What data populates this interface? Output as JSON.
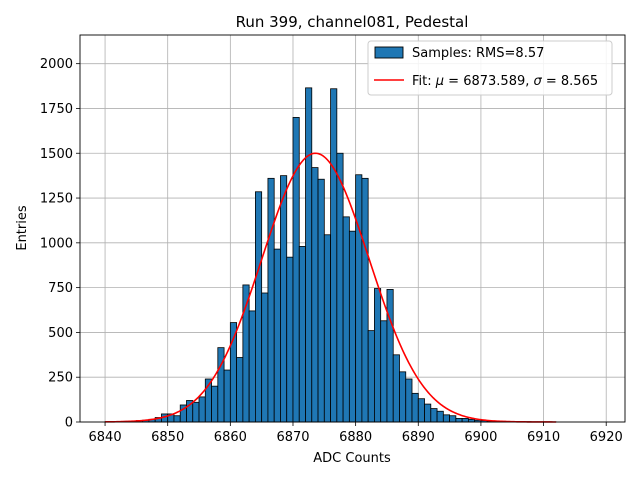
{
  "chart_data": {
    "type": "bar",
    "title": "Run 399, channel081, Pedestal",
    "xlabel": "ADC Counts",
    "ylabel": "Entries",
    "xlim": [
      6836,
      6923
    ],
    "ylim": [
      0,
      2160
    ],
    "xticks": [
      6840,
      6850,
      6860,
      6870,
      6880,
      6890,
      6900,
      6910,
      6920
    ],
    "yticks": [
      0,
      250,
      500,
      750,
      1000,
      1250,
      1500,
      1750,
      2000
    ],
    "grid": true,
    "legend_position": "top-right",
    "colors": {
      "bars": "#1f77b4",
      "bar_edge": "#000000",
      "fit": "#ff0000",
      "grid": "#b0b0b0"
    },
    "histogram": {
      "name": "Samples: RMS=8.57",
      "bin_width": 1,
      "bin_left_edges": [
        6840,
        6841,
        6842,
        6843,
        6844,
        6845,
        6846,
        6847,
        6848,
        6849,
        6850,
        6851,
        6852,
        6853,
        6854,
        6855,
        6856,
        6857,
        6858,
        6859,
        6860,
        6861,
        6862,
        6863,
        6864,
        6865,
        6866,
        6867,
        6868,
        6869,
        6870,
        6871,
        6872,
        6873,
        6874,
        6875,
        6876,
        6877,
        6878,
        6879,
        6880,
        6881,
        6882,
        6883,
        6884,
        6885,
        6886,
        6887,
        6888,
        6889,
        6890,
        6891,
        6892,
        6893,
        6894,
        6895,
        6896,
        6897,
        6898,
        6899,
        6900,
        6901,
        6902,
        6903,
        6904,
        6905,
        6906,
        6907,
        6908,
        6909,
        6910,
        6911
      ],
      "counts": [
        2,
        2,
        3,
        4,
        5,
        8,
        10,
        15,
        25,
        45,
        45,
        35,
        95,
        120,
        110,
        140,
        240,
        200,
        415,
        290,
        555,
        360,
        765,
        620,
        1285,
        720,
        1360,
        965,
        1375,
        920,
        1700,
        980,
        1865,
        1420,
        1355,
        1045,
        1860,
        1500,
        1145,
        1065,
        1380,
        1360,
        510,
        745,
        565,
        740,
        375,
        280,
        240,
        160,
        130,
        100,
        75,
        60,
        40,
        35,
        20,
        20,
        15,
        10,
        8,
        6,
        5,
        4,
        3,
        3,
        2,
        2,
        1,
        1,
        1,
        1
      ]
    },
    "fit": {
      "name_prefix": "Fit: ",
      "mu_symbol": "μ",
      "mu_text": " = 6873.589, ",
      "sigma_symbol": "σ",
      "sigma_text": " = 8.565",
      "mu": 6873.589,
      "sigma": 8.565,
      "amplitude": 1500,
      "x_range": [
        6840,
        6912
      ]
    }
  }
}
